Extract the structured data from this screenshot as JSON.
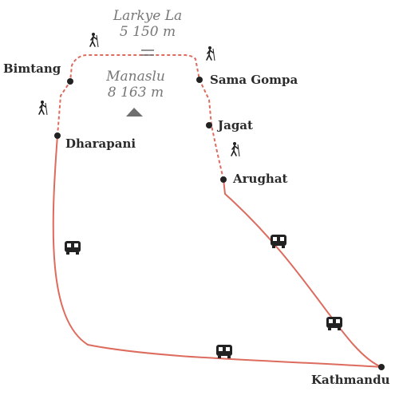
{
  "colors": {
    "route": "#dd6b5e",
    "point": "#222222",
    "label": "#2b2b2b",
    "peak": "#777777",
    "icon": "#222222"
  },
  "pass": {
    "name": "Larkye La",
    "elevation": "5 150 m"
  },
  "peak": {
    "name": "Manaslu",
    "elevation": "8 163 m"
  },
  "places": {
    "bimtang": "Bimtang",
    "dharapani": "Dharapani",
    "sama_gompa": "Sama Gompa",
    "jagat": "Jagat",
    "arughat": "Arughat",
    "kathmandu": "Kathmandu"
  },
  "legend_icons": [
    "hiker-icon",
    "bus-icon"
  ]
}
